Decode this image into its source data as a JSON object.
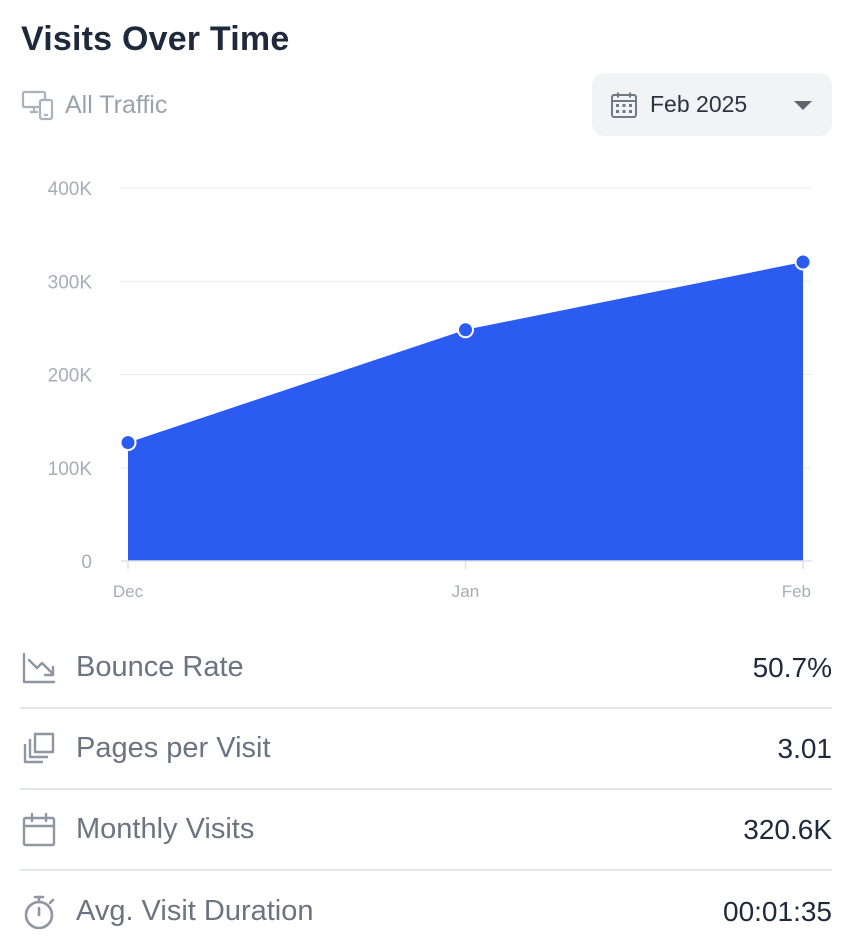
{
  "header": {
    "title": "Visits Over Time",
    "filter_label": "All Traffic",
    "date_label": "Feb 2025"
  },
  "icons": {
    "filter": "devices-icon",
    "date": "calendar-icon",
    "date_dropdown": "chevron-down-icon"
  },
  "colors": {
    "accent": "#2c5bf2",
    "grid": "#e9ebee"
  },
  "chart_data": {
    "type": "area",
    "categories": [
      "Dec",
      "Jan",
      "Feb"
    ],
    "values": [
      127000,
      248000,
      320600
    ],
    "ylim": [
      0,
      400000
    ],
    "yticks": [
      "0",
      "100K",
      "200K",
      "300K",
      "400K"
    ],
    "ytick_values": [
      0,
      100000,
      200000,
      300000,
      400000
    ],
    "grid": true,
    "legend": "none"
  },
  "metrics": [
    {
      "label": "Bounce Rate",
      "value": "50.7%",
      "icon": "trend-down-icon"
    },
    {
      "label": "Pages per Visit",
      "value": "3.01",
      "icon": "pages-stack-icon"
    },
    {
      "label": "Monthly Visits",
      "value": "320.6K",
      "icon": "calendar-icon"
    },
    {
      "label": "Avg. Visit Duration",
      "value": "00:01:35",
      "icon": "stopwatch-icon"
    }
  ]
}
